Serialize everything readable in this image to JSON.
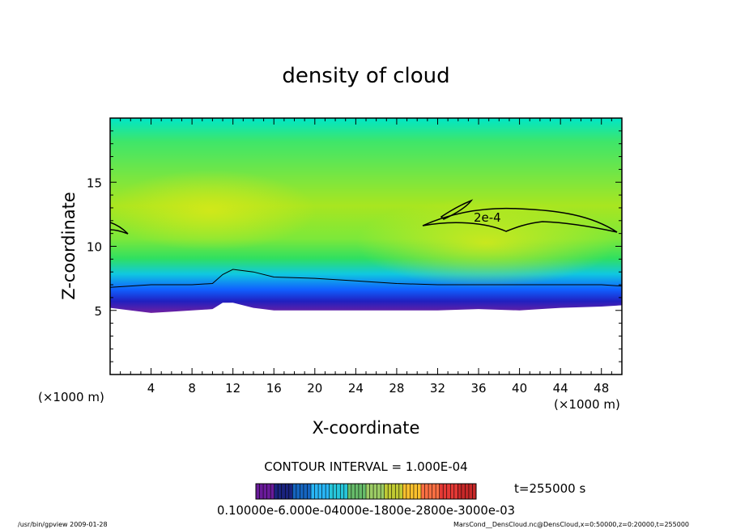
{
  "chart_data": {
    "type": "heatmap",
    "title": "density of cloud",
    "xlabel": "X-coordinate",
    "ylabel": "Z-coordinate",
    "x_unit_label": "(×1000 m)",
    "y_unit_label": "(×1000 m)",
    "xlim": [
      0,
      50
    ],
    "ylim": [
      0,
      20
    ],
    "x_ticks": [
      4,
      8,
      12,
      16,
      20,
      24,
      28,
      32,
      36,
      40,
      44,
      48
    ],
    "y_ticks": [
      5,
      10,
      15
    ],
    "contour_interval_text": "CONTOUR INTERVAL = 1.000E-04",
    "contour_label": "2e-4",
    "time_text": "t=255000 s",
    "colorbar": {
      "range": [
        0.0001,
        0.0007
      ],
      "labels_text": "0.10000e-6.000e-04000e-1800e-2800e-3000e-03",
      "colors": [
        "#6a1b9a",
        "#1a237e",
        "#1565c0",
        "#29b6f6",
        "#26c6da",
        "#66bb6a",
        "#9ccc65",
        "#c0ca33",
        "#fbc02d",
        "#ff7043",
        "#e53935",
        "#c62828"
      ]
    },
    "cloud_base_profile": {
      "x": [
        0,
        2,
        4,
        6,
        8,
        10,
        11,
        12,
        14,
        16,
        20,
        24,
        28,
        32,
        36,
        40,
        44,
        48,
        50
      ],
      "z": [
        5.2,
        5.0,
        4.8,
        4.9,
        5.0,
        5.1,
        5.6,
        5.6,
        5.2,
        5.0,
        5.0,
        5.0,
        5.0,
        5.0,
        5.1,
        5.0,
        5.2,
        5.3,
        5.4
      ]
    },
    "outer_contour_profile": {
      "x": [
        0,
        2,
        4,
        8,
        10,
        11,
        12,
        14,
        16,
        20,
        24,
        28,
        32,
        36,
        40,
        44,
        48,
        50
      ],
      "z": [
        6.8,
        6.9,
        7.0,
        7.0,
        7.1,
        7.8,
        8.2,
        8.0,
        7.6,
        7.5,
        7.3,
        7.1,
        7.0,
        7.0,
        7.0,
        7.0,
        7.0,
        6.9
      ]
    }
  },
  "footer": {
    "left": "/usr/bin/gpview   2009-01-28",
    "right": "MarsCond__DensCloud.nc@DensCloud,x=0:50000,z=0:20000,t=255000"
  }
}
